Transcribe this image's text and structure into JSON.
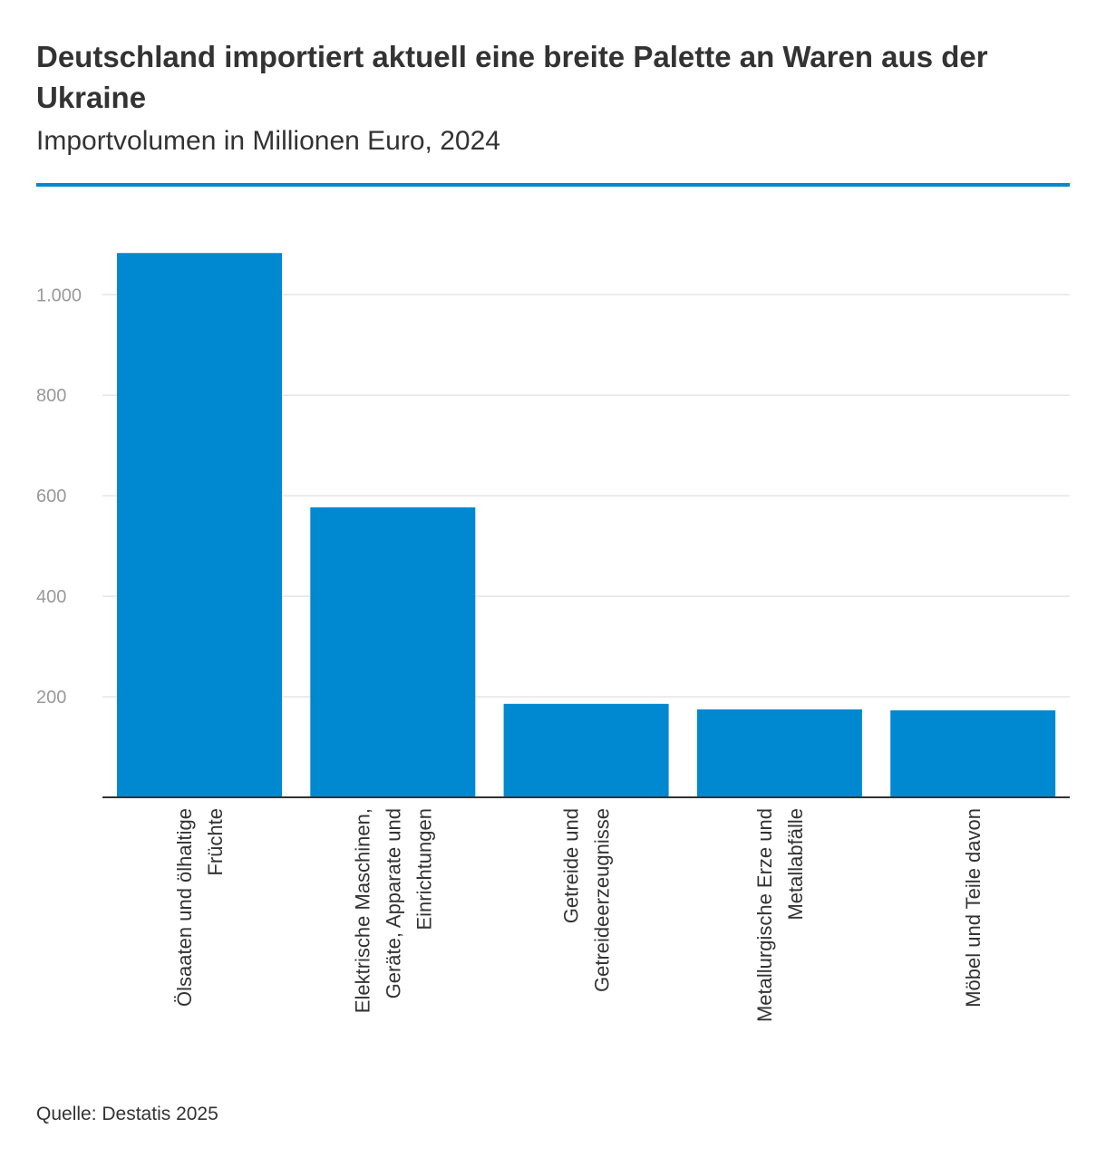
{
  "header": {
    "title": "Deutschland importiert aktuell eine breite Palette an Waren aus der Ukraine",
    "subtitle": "Importvolumen in Millionen Euro, 2024"
  },
  "footer": {
    "source": "Quelle: Destatis 2025"
  },
  "colors": {
    "bar": "#0088d1",
    "accent_rule": "#0088d1",
    "grid": "#e5e5e5",
    "axis": "#333333",
    "tick_text": "#999999"
  },
  "chart_data": {
    "type": "bar",
    "orientation": "vertical",
    "categories": [
      [
        "Ölsaaten und ölhaltige",
        "Früchte"
      ],
      [
        "Elektrische Maschinen,",
        "Geräte, Apparate und",
        "Einrichtungen"
      ],
      [
        "Getreide und",
        "Getreideerzeugnisse"
      ],
      [
        "Metallurgische Erze und",
        "Metallabfälle"
      ],
      [
        "Möbel und Teile davon"
      ]
    ],
    "values": [
      1083,
      577,
      186,
      175,
      173
    ],
    "title": "Deutschland importiert aktuell eine breite Palette an Waren aus der Ukraine",
    "subtitle": "Importvolumen in Millionen Euro, 2024",
    "xlabel": "",
    "ylabel": "",
    "ylim": [
      0,
      1200
    ],
    "yticks": [
      200,
      400,
      600,
      800,
      1000
    ],
    "ytick_labels": [
      "200",
      "400",
      "600",
      "800",
      "1.000"
    ],
    "grid": true,
    "legend": "none"
  }
}
